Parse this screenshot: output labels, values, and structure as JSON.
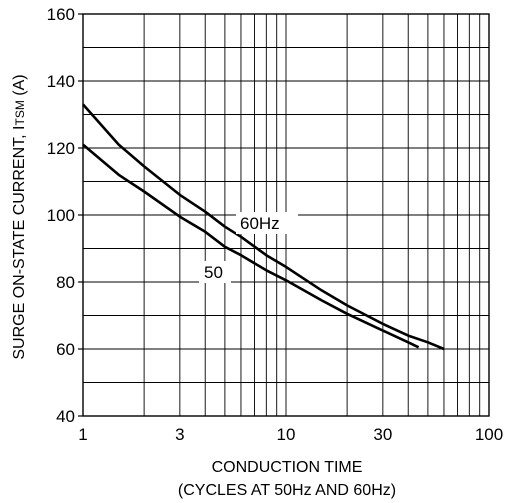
{
  "chart_data": {
    "type": "line",
    "x_scale": "log",
    "xlim": [
      1,
      100
    ],
    "ylim": [
      40,
      160
    ],
    "grid": true,
    "x_ticks": [
      1,
      3,
      10,
      30,
      100
    ],
    "y_ticks": [
      40,
      60,
      80,
      100,
      120,
      140,
      160
    ],
    "xlabel": "CONDUCTION TIME",
    "xlabel_line2": "(CYCLES AT 50Hz AND 60Hz)",
    "ylabel": "SURGE ON-STATE CURRENT, ITSM (A)",
    "series": [
      {
        "name": "60Hz",
        "x": [
          1,
          1.5,
          2,
          3,
          4,
          5,
          6,
          8,
          10,
          15,
          20,
          30,
          40,
          50,
          60
        ],
        "y": [
          133,
          121,
          114.5,
          106,
          101,
          96.5,
          93.5,
          88,
          84.5,
          77.5,
          73,
          67.5,
          64,
          62,
          60
        ]
      },
      {
        "name": "50",
        "x": [
          1,
          1.5,
          2,
          3,
          4,
          5,
          6,
          8,
          10,
          15,
          20,
          30,
          40,
          45
        ],
        "y": [
          121,
          112,
          107,
          99.5,
          95,
          90.5,
          88,
          83.5,
          80.5,
          74.5,
          70.5,
          65.5,
          62,
          60.5
        ]
      }
    ]
  }
}
